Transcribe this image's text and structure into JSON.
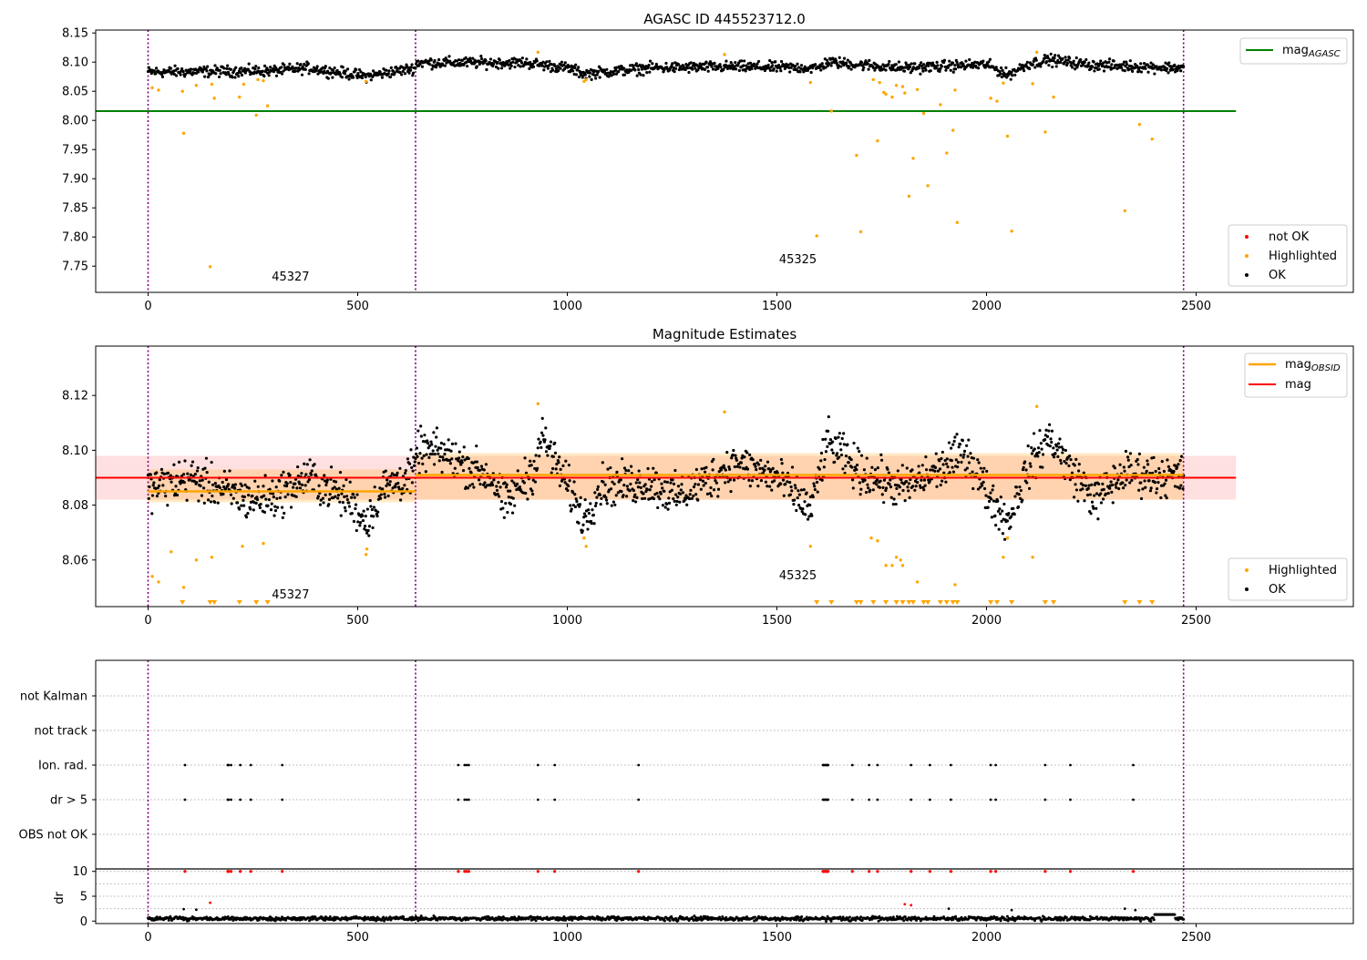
{
  "chart_data": [
    {
      "type": "scatter",
      "title": "AGASC ID 445523712.0",
      "xlim": [
        -125,
        2875
      ],
      "ylim": [
        7.705,
        8.155
      ],
      "xticks": [
        0,
        500,
        1000,
        1500,
        2000,
        2500
      ],
      "yticks": [
        7.75,
        7.8,
        7.85,
        7.9,
        7.95,
        8.0,
        8.05,
        8.1,
        8.15
      ],
      "obs_boundaries": [
        0,
        638,
        2470
      ],
      "annotations": [
        {
          "text": "45327",
          "x": 340,
          "y": 7.725
        },
        {
          "text": "45325",
          "x": 1550,
          "y": 7.755
        }
      ],
      "reference_line": {
        "name": "mag_AGASC",
        "y": 8.016,
        "x_range": [
          -125,
          2595
        ],
        "color": "#008000"
      },
      "ok_series": {
        "name": "OK",
        "color": "#000000",
        "x_range": [
          0,
          2470
        ],
        "center_segments": [
          [
            0,
            8.083
          ],
          [
            300,
            8.085
          ],
          [
            380,
            8.09
          ],
          [
            520,
            8.076
          ],
          [
            638,
            8.09
          ],
          [
            640,
            8.099
          ],
          [
            900,
            8.099
          ],
          [
            1000,
            8.09
          ],
          [
            1040,
            8.08
          ],
          [
            1200,
            8.09
          ],
          [
            1400,
            8.092
          ],
          [
            1600,
            8.09
          ],
          [
            1620,
            8.1
          ],
          [
            1800,
            8.09
          ],
          [
            2000,
            8.096
          ],
          [
            2050,
            8.078
          ],
          [
            2100,
            8.097
          ],
          [
            2150,
            8.104
          ],
          [
            2250,
            8.095
          ],
          [
            2470,
            8.09
          ]
        ],
        "spread": 0.008
      },
      "highlighted": {
        "name": "Highlighted",
        "color": "#ffa500",
        "points": [
          [
            10,
            8.056
          ],
          [
            25,
            8.052
          ],
          [
            82,
            8.05
          ],
          [
            85,
            7.978
          ],
          [
            115,
            8.06
          ],
          [
            148,
            7.749
          ],
          [
            152,
            8.062
          ],
          [
            158,
            8.038
          ],
          [
            218,
            8.04
          ],
          [
            228,
            8.062
          ],
          [
            258,
            8.009
          ],
          [
            262,
            8.07
          ],
          [
            275,
            8.068
          ],
          [
            285,
            8.025
          ],
          [
            520,
            8.067
          ],
          [
            930,
            8.117
          ],
          [
            1040,
            8.067
          ],
          [
            1045,
            8.07
          ],
          [
            1375,
            8.113
          ],
          [
            1580,
            8.065
          ],
          [
            1595,
            7.802
          ],
          [
            1630,
            8.016
          ],
          [
            1690,
            7.94
          ],
          [
            1700,
            7.809
          ],
          [
            1730,
            8.07
          ],
          [
            1740,
            7.965
          ],
          [
            1745,
            8.065
          ],
          [
            1755,
            8.048
          ],
          [
            1760,
            8.045
          ],
          [
            1775,
            8.04
          ],
          [
            1785,
            8.06
          ],
          [
            1800,
            8.058
          ],
          [
            1805,
            8.047
          ],
          [
            1815,
            7.87
          ],
          [
            1825,
            7.935
          ],
          [
            1835,
            8.053
          ],
          [
            1850,
            8.012
          ],
          [
            1860,
            7.888
          ],
          [
            1890,
            8.027
          ],
          [
            1905,
            7.944
          ],
          [
            1920,
            7.983
          ],
          [
            1925,
            8.052
          ],
          [
            1930,
            7.825
          ],
          [
            2010,
            8.038
          ],
          [
            2025,
            8.033
          ],
          [
            2040,
            8.064
          ],
          [
            2050,
            7.973
          ],
          [
            2060,
            7.81
          ],
          [
            2110,
            8.063
          ],
          [
            2120,
            8.117
          ],
          [
            2140,
            7.98
          ],
          [
            2160,
            8.04
          ],
          [
            2330,
            7.845
          ],
          [
            2365,
            7.993
          ],
          [
            2395,
            7.968
          ]
        ]
      },
      "not_ok": {
        "name": "not OK",
        "color": "#ff0000",
        "points": []
      },
      "legends": [
        {
          "items": [
            "mag_AGASC"
          ],
          "position": "top-right"
        },
        {
          "items": [
            "not OK",
            "Highlighted",
            "OK"
          ],
          "position": "bottom-right"
        }
      ]
    },
    {
      "type": "scatter",
      "title": "Magnitude Estimates",
      "xlim": [
        -125,
        2875
      ],
      "ylim": [
        8.043,
        8.138
      ],
      "xticks": [
        0,
        500,
        1000,
        1500,
        2000,
        2500
      ],
      "yticks": [
        8.06,
        8.08,
        8.1,
        8.12
      ],
      "obs_boundaries": [
        0,
        638,
        2470
      ],
      "annotations": [
        {
          "text": "45327",
          "x": 340,
          "y": 8.046
        },
        {
          "text": "45325",
          "x": 1550,
          "y": 8.053
        }
      ],
      "mag_line": {
        "name": "mag",
        "y": 8.09,
        "band": [
          8.082,
          8.098
        ],
        "x_range": [
          -125,
          2595
        ],
        "color": "#ff0000"
      },
      "mag_obsid": {
        "name": "mag_OBSID",
        "color": "#ffa500",
        "segments": [
          {
            "x": [
              0,
              638
            ],
            "y": 8.085,
            "band": [
              8.081,
              8.093
            ]
          },
          {
            "x": [
              638,
              2470
            ],
            "y": 8.091,
            "band": [
              8.082,
              8.099
            ]
          }
        ]
      },
      "ok_series": {
        "name": "OK",
        "color": "#000000",
        "x_range": [
          0,
          2470
        ],
        "center_segments": [
          [
            0,
            8.086
          ],
          [
            100,
            8.09
          ],
          [
            240,
            8.082
          ],
          [
            300,
            8.083
          ],
          [
            380,
            8.09
          ],
          [
            480,
            8.082
          ],
          [
            520,
            8.074
          ],
          [
            560,
            8.086
          ],
          [
            638,
            8.092
          ],
          [
            640,
            8.1
          ],
          [
            700,
            8.099
          ],
          [
            820,
            8.09
          ],
          [
            850,
            8.08
          ],
          [
            920,
            8.093
          ],
          [
            940,
            8.105
          ],
          [
            1000,
            8.087
          ],
          [
            1040,
            8.075
          ],
          [
            1080,
            8.087
          ],
          [
            1200,
            8.088
          ],
          [
            1260,
            8.083
          ],
          [
            1400,
            8.095
          ],
          [
            1500,
            8.09
          ],
          [
            1550,
            8.083
          ],
          [
            1580,
            8.078
          ],
          [
            1620,
            8.103
          ],
          [
            1700,
            8.092
          ],
          [
            1800,
            8.086
          ],
          [
            1900,
            8.094
          ],
          [
            1950,
            8.1
          ],
          [
            2000,
            8.085
          ],
          [
            2050,
            8.074
          ],
          [
            2100,
            8.094
          ],
          [
            2150,
            8.105
          ],
          [
            2200,
            8.093
          ],
          [
            2260,
            8.082
          ],
          [
            2330,
            8.092
          ],
          [
            2470,
            8.09
          ]
        ],
        "spread": 0.0065
      },
      "highlighted": {
        "name": "Highlighted",
        "color": "#ffa500",
        "points": [
          [
            10,
            8.054
          ],
          [
            25,
            8.052
          ],
          [
            55,
            8.063
          ],
          [
            85,
            8.05
          ],
          [
            115,
            8.06
          ],
          [
            152,
            8.061
          ],
          [
            225,
            8.065
          ],
          [
            275,
            8.066
          ],
          [
            520,
            8.062
          ],
          [
            522,
            8.064
          ],
          [
            930,
            8.117
          ],
          [
            1040,
            8.068
          ],
          [
            1045,
            8.065
          ],
          [
            1375,
            8.114
          ],
          [
            1580,
            8.065
          ],
          [
            1725,
            8.068
          ],
          [
            1740,
            8.067
          ],
          [
            1760,
            8.058
          ],
          [
            1775,
            8.058
          ],
          [
            1785,
            8.061
          ],
          [
            1795,
            8.06
          ],
          [
            1800,
            8.058
          ],
          [
            1835,
            8.052
          ],
          [
            1925,
            8.051
          ],
          [
            2040,
            8.061
          ],
          [
            2050,
            8.068
          ],
          [
            2110,
            8.061
          ],
          [
            2120,
            8.116
          ]
        ]
      },
      "below_range_markers": {
        "color": "#ffa500",
        "x": [
          82,
          148,
          158,
          218,
          258,
          285,
          1595,
          1630,
          1690,
          1700,
          1730,
          1760,
          1785,
          1800,
          1815,
          1825,
          1850,
          1860,
          1890,
          1905,
          1920,
          1930,
          2010,
          2025,
          2060,
          2140,
          2160,
          2330,
          2365,
          2395
        ]
      },
      "legends": [
        {
          "items": [
            "mag_OBSID",
            "mag"
          ],
          "position": "top-right"
        },
        {
          "items": [
            "Highlighted",
            "OK"
          ],
          "position": "bottom-right"
        }
      ]
    },
    {
      "type": "scatter",
      "title": "",
      "xlim": [
        -125,
        2875
      ],
      "categories": [
        "OBS not OK",
        "dr > 5",
        "Ion. rad.",
        "not track",
        "not Kalman"
      ],
      "obs_boundaries": [
        0,
        638,
        2470
      ],
      "flags": {
        "Ion. rad.": [
          88,
          190,
          192,
          198,
          220,
          245,
          320,
          740,
          755,
          760,
          765,
          930,
          970,
          1170,
          1610,
          1612,
          1615,
          1618,
          1620,
          1622,
          1680,
          1720,
          1740,
          1820,
          1865,
          1915,
          2010,
          2022,
          2140,
          2200,
          2350
        ],
        "dr > 5": [
          88,
          190,
          192,
          198,
          220,
          245,
          320,
          740,
          755,
          760,
          765,
          930,
          970,
          1170,
          1610,
          1612,
          1615,
          1618,
          1620,
          1622,
          1680,
          1720,
          1740,
          1820,
          1865,
          1915,
          2010,
          2022,
          2140,
          2200,
          2350
        ]
      }
    },
    {
      "type": "scatter",
      "title": "",
      "ylabel": "dr",
      "xlim": [
        -125,
        2875
      ],
      "ylim": [
        -0.5,
        10.5
      ],
      "xticks": [
        0,
        500,
        1000,
        1500,
        2000,
        2500
      ],
      "yticks": [
        0,
        5,
        10
      ],
      "obs_boundaries": [
        0,
        638,
        2470
      ],
      "clipped_points": {
        "color": "#ff0000",
        "y": 10,
        "x": [
          88,
          190,
          192,
          198,
          220,
          245,
          320,
          740,
          755,
          760,
          765,
          930,
          970,
          1170,
          1610,
          1612,
          1615,
          1618,
          1620,
          1622,
          1680,
          1720,
          1740,
          1820,
          1865,
          1915,
          2010,
          2022,
          2140,
          2200,
          2350
        ]
      },
      "not_ok": {
        "color": "#ff0000",
        "points": [
          [
            148,
            3.7
          ],
          [
            1805,
            3.4
          ],
          [
            1820,
            3.2
          ]
        ]
      },
      "ok_series": {
        "color": "#000000",
        "x_range": [
          0,
          2470
        ],
        "typical": 0.5,
        "outliers": [
          [
            85,
            2.4
          ],
          [
            115,
            2.3
          ],
          [
            1910,
            2.5
          ],
          [
            2060,
            2.2
          ],
          [
            2330,
            2.5
          ],
          [
            2355,
            2.2
          ]
        ]
      }
    }
  ]
}
